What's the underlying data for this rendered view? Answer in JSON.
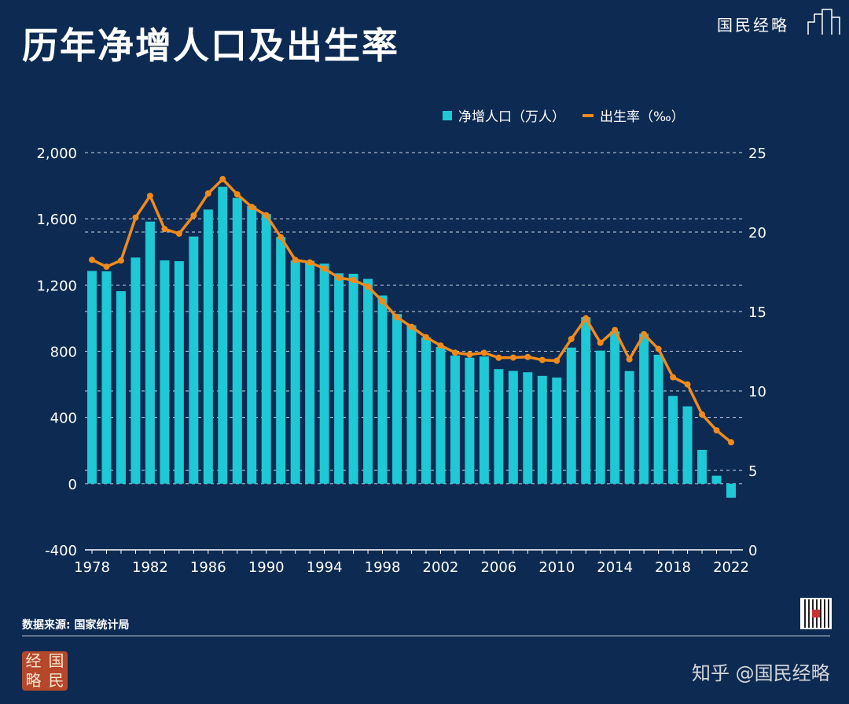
{
  "header": {
    "title": "历年净增人口及出生率",
    "brand": "国民经略"
  },
  "footer": {
    "source": "数据来源: 国家统计局",
    "seal": [
      "经",
      "国",
      "略",
      "民"
    ],
    "watermark": "知乎 @国民经略"
  },
  "colors": {
    "background": "#0d2b52",
    "bar": "#1ec8d4",
    "line": "#f08a1c"
  },
  "chart_data": {
    "type": "bar+line",
    "title": "历年净增人口及出生率",
    "legend_position": "top-right",
    "grid": true,
    "x": [
      1978,
      1979,
      1980,
      1981,
      1982,
      1983,
      1984,
      1985,
      1986,
      1987,
      1988,
      1989,
      1990,
      1991,
      1992,
      1993,
      1994,
      1995,
      1996,
      1997,
      1998,
      1999,
      2000,
      2001,
      2002,
      2003,
      2004,
      2005,
      2006,
      2007,
      2008,
      2009,
      2010,
      2011,
      2012,
      2013,
      2014,
      2015,
      2016,
      2017,
      2018,
      2019,
      2020,
      2021,
      2022
    ],
    "x_ticks": [
      "1978",
      "1982",
      "1986",
      "1990",
      "1994",
      "1998",
      "2002",
      "2006",
      "2010",
      "2014",
      "2018",
      "2022"
    ],
    "left_axis": {
      "ylim": [
        -400,
        2000
      ],
      "ticks": [
        "-400",
        "0",
        "400",
        "800",
        "1,200",
        "1,600",
        "2,000"
      ]
    },
    "right_axis": {
      "ylim": [
        0,
        25
      ],
      "ticks": [
        "0",
        "5",
        "10",
        "15",
        "20",
        "25"
      ]
    },
    "series": [
      {
        "name": "净增人口（万人）",
        "type": "bar",
        "axis": "left",
        "values": [
          1285,
          1283,
          1163,
          1366,
          1583,
          1349,
          1344,
          1493,
          1656,
          1793,
          1726,
          1678,
          1629,
          1490,
          1348,
          1346,
          1329,
          1271,
          1268,
          1237,
          1137,
          1025,
          957,
          884,
          826,
          774,
          761,
          768,
          692,
          681,
          673,
          651,
          641,
          822,
          1006,
          804,
          920,
          680,
          906,
          779,
          530,
          467,
          204,
          48,
          -85
        ]
      },
      {
        "name": "出生率（‰）",
        "type": "line",
        "axis": "right",
        "values": [
          18.25,
          17.82,
          18.21,
          20.91,
          22.28,
          20.19,
          19.9,
          21.04,
          22.43,
          23.33,
          22.37,
          21.58,
          21.06,
          19.68,
          18.24,
          18.09,
          17.7,
          17.12,
          16.98,
          16.57,
          15.64,
          14.64,
          14.03,
          13.38,
          12.86,
          12.41,
          12.29,
          12.4,
          12.09,
          12.1,
          12.14,
          11.95,
          11.9,
          13.27,
          14.57,
          13.03,
          13.83,
          11.99,
          13.57,
          12.64,
          10.86,
          10.41,
          8.52,
          7.52,
          6.77
        ]
      }
    ]
  }
}
